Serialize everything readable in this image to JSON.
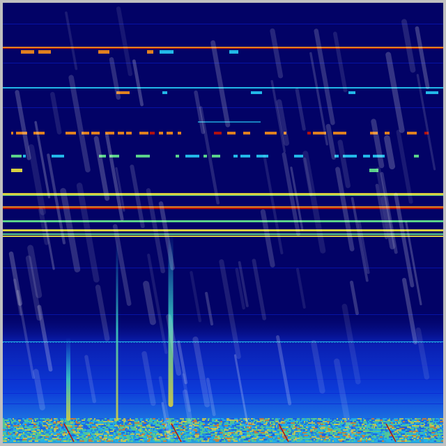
{
  "colors": {
    "frame": "#c0c0c0",
    "background": "#020266",
    "deep_blue": "#0a1ed0",
    "mid_blue": "#1a5ae0",
    "cyan": "#22b8e8",
    "green": "#5ad28a",
    "yellow": "#d8d040",
    "orange": "#e08020",
    "red": "#b01010",
    "streak": "#ffffff"
  }
}
